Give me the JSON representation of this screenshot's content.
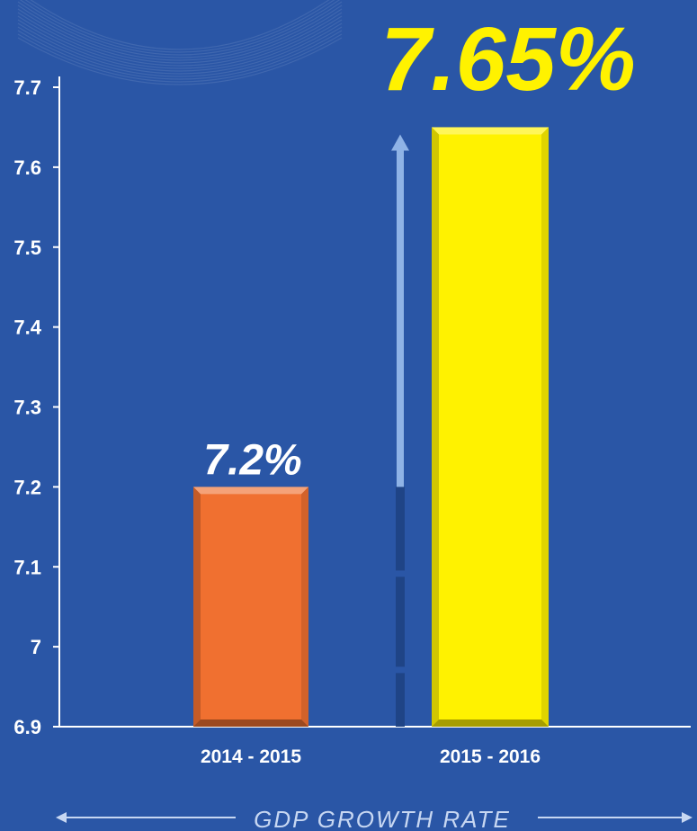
{
  "chart_data": {
    "type": "bar",
    "categories": [
      "2014 - 2015",
      "2015 - 2016"
    ],
    "values": [
      7.2,
      7.65
    ],
    "data_labels": [
      "7.2%",
      "7.65%"
    ],
    "yticks": [
      "6.9",
      "7",
      "7.1",
      "7.2",
      "7.3",
      "7.4",
      "7.5",
      "7.6",
      "7.7"
    ],
    "ylim": [
      6.9,
      7.7
    ],
    "xlabel": "GDP GROWTH RATE",
    "title": "",
    "ylabel": "",
    "grid": false,
    "colors": {
      "background": "#2a56a6",
      "bar_1": "#f07030",
      "bar_2": "#fff200",
      "label_1": "#ffffff",
      "label_2": "#fff200",
      "axis": "#ffffff",
      "arrow_light": "#8fb3e6",
      "arrow_dark": "#1f4486"
    }
  }
}
